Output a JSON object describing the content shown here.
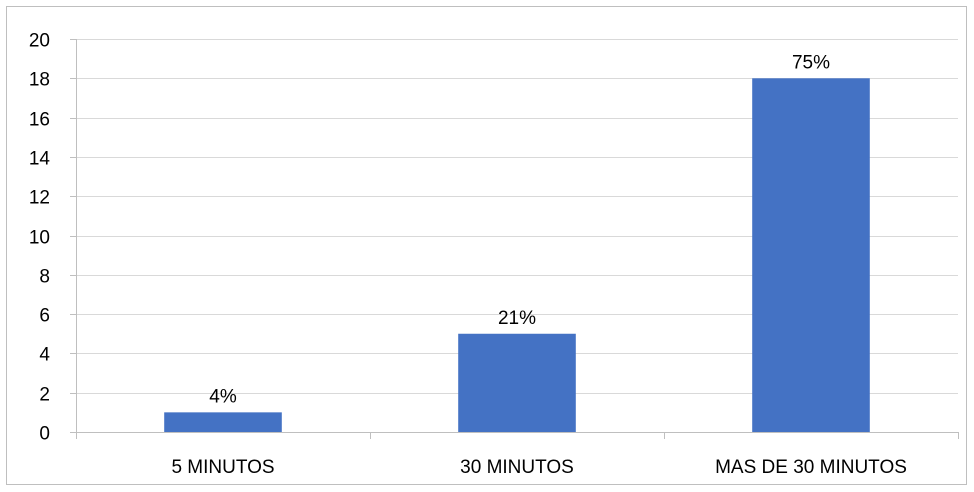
{
  "chart_data": {
    "type": "bar",
    "categories": [
      "5 MINUTOS",
      "30 MINUTOS",
      "MAS DE 30 MINUTOS"
    ],
    "values": [
      1,
      5,
      18
    ],
    "data_labels": [
      "4%",
      "21%",
      "75%"
    ],
    "ylim": [
      0,
      20
    ],
    "yticks": [
      0,
      2,
      4,
      6,
      8,
      10,
      12,
      14,
      16,
      18,
      20
    ],
    "title": "",
    "xlabel": "",
    "ylabel": "",
    "grid": true,
    "legend": "none",
    "colors": {
      "bar": "#4472c4",
      "grid": "#d9d9d9",
      "axis": "#bfbfbf",
      "frame": "#bfbfbf"
    }
  }
}
